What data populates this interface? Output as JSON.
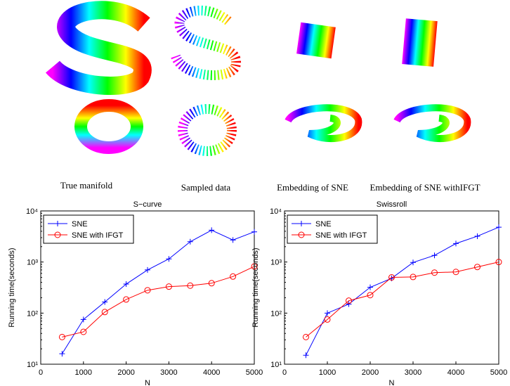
{
  "figure": {
    "captions": [
      "True manifold",
      "Sampled data",
      "Embedding of SNE",
      "Embedding of SNE withIFGT"
    ]
  },
  "chart_data": [
    {
      "type": "line",
      "title": "S−curve",
      "x_label": "N",
      "y_label": "Running time(seconds)",
      "x": [
        500,
        1000,
        1500,
        2000,
        2500,
        3000,
        3500,
        4000,
        4500,
        5000
      ],
      "series": [
        {
          "name": "SNE",
          "color": "#0000ff",
          "marker": "+",
          "values": [
            16,
            75,
            165,
            370,
            700,
            1150,
            2500,
            4200,
            2700,
            3900
          ]
        },
        {
          "name": "SNE with IFGT",
          "color": "#ff0000",
          "marker": "o",
          "values": [
            34,
            43,
            105,
            185,
            280,
            330,
            345,
            385,
            520,
            820
          ]
        }
      ],
      "xlim": [
        0,
        5000
      ],
      "xticks": [
        0,
        1000,
        2000,
        3000,
        4000,
        5000
      ],
      "ylim": [
        10,
        10000
      ],
      "log_y": true,
      "yticks": [
        {
          "value": 10,
          "label": "10¹"
        },
        {
          "value": 100,
          "label": "10²"
        },
        {
          "value": 1000,
          "label": "10³"
        },
        {
          "value": 10000,
          "label": "10⁴"
        }
      ],
      "legend": "upper-left"
    },
    {
      "type": "line",
      "title": "Swissroll",
      "x_label": "N",
      "y_label": "Running time(seconds)",
      "x": [
        500,
        1000,
        1500,
        2000,
        2500,
        3000,
        3500,
        4000,
        4500,
        5000
      ],
      "series": [
        {
          "name": "SNE",
          "color": "#0000ff",
          "marker": "+",
          "values": [
            15,
            100,
            150,
            320,
            480,
            980,
            1350,
            2300,
            3200,
            4800
          ]
        },
        {
          "name": "SNE with IFGT",
          "color": "#ff0000",
          "marker": "o",
          "values": [
            34,
            75,
            175,
            225,
            500,
            510,
            620,
            640,
            800,
            1000
          ]
        }
      ],
      "xlim": [
        0,
        5000
      ],
      "xticks": [
        0,
        1000,
        2000,
        3000,
        4000,
        5000
      ],
      "ylim": [
        10,
        10000
      ],
      "log_y": true,
      "yticks": [
        {
          "value": 10,
          "label": "10¹"
        },
        {
          "value": 100,
          "label": "10²"
        },
        {
          "value": 1000,
          "label": "10³"
        },
        {
          "value": 10000,
          "label": "10⁴"
        }
      ],
      "legend": "upper-left"
    }
  ]
}
